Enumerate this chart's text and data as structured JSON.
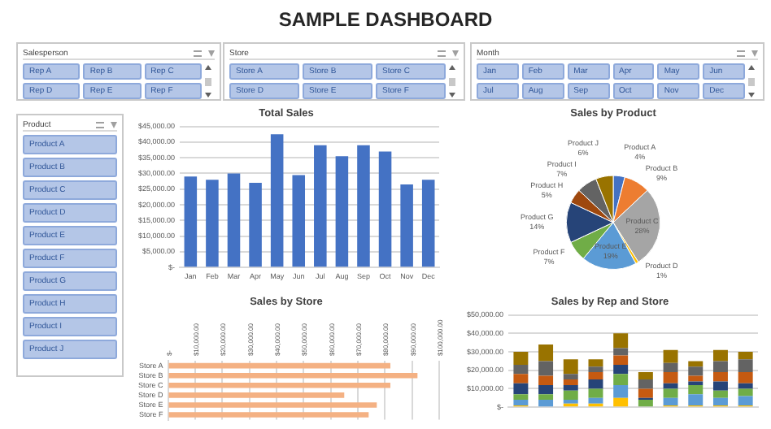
{
  "chart_data": [
    {
      "type": "other",
      "title": "SAMPLE DASHBOARD"
    },
    {
      "type": "other",
      "title": "Salesperson",
      "categories": [
        "Rep A",
        "Rep B",
        "Rep C",
        "Rep D",
        "Rep E",
        "Rep F"
      ]
    },
    {
      "type": "other",
      "title": "Store",
      "categories": [
        "Store A",
        "Store B",
        "Store C",
        "Store D",
        "Store E",
        "Store F"
      ]
    },
    {
      "type": "other",
      "title": "Month",
      "categories": [
        "Jan",
        "Feb",
        "Mar",
        "Apr",
        "May",
        "Jun",
        "Jul",
        "Aug",
        "Sep",
        "Oct",
        "Nov",
        "Dec"
      ]
    },
    {
      "type": "other",
      "title": "Product",
      "categories": [
        "Product A",
        "Product B",
        "Product C",
        "Product D",
        "Product E",
        "Product F",
        "Product G",
        "Product H",
        "Product I",
        "Product J"
      ]
    },
    {
      "type": "bar",
      "title": "Total Sales",
      "categories": [
        "Jan",
        "Feb",
        "Mar",
        "Apr",
        "May",
        "Jun",
        "Jul",
        "Aug",
        "Sep",
        "Oct",
        "Nov",
        "Dec"
      ],
      "values": [
        29000,
        28000,
        30000,
        27000,
        42500,
        29500,
        39000,
        35500,
        39000,
        37000,
        26500,
        28000
      ],
      "color": "#4472c4",
      "ylim": [
        0,
        45000
      ],
      "yticks": [
        {
          "value": 0,
          "label": "$-"
        },
        {
          "value": 5000,
          "label": "$5,000.00"
        },
        {
          "value": 10000,
          "label": "$10,000.00"
        },
        {
          "value": 15000,
          "label": "$15,000.00"
        },
        {
          "value": 20000,
          "label": "$20,000.00"
        },
        {
          "value": 25000,
          "label": "$25,000.00"
        },
        {
          "value": 30000,
          "label": "$30,000.00"
        },
        {
          "value": 35000,
          "label": "$35,000.00"
        },
        {
          "value": 40000,
          "label": "$40,000.00"
        },
        {
          "value": 45000,
          "label": "$45,000.00"
        }
      ],
      "grid": "y"
    },
    {
      "type": "pie",
      "title": "Sales by Product",
      "categories": [
        "Product A",
        "Product B",
        "Product C",
        "Product D",
        "Product E",
        "Product F",
        "Product G",
        "Product H",
        "Product I",
        "Product J"
      ],
      "values": [
        4,
        9,
        28,
        1,
        19,
        7,
        14,
        5,
        7,
        6
      ],
      "colors": [
        "#4472c4",
        "#ed7d31",
        "#a5a5a5",
        "#ffc000",
        "#5b9bd5",
        "#70ad47",
        "#264478",
        "#9e480e",
        "#636363",
        "#997300"
      ],
      "value_labels": [
        "4%",
        "9%",
        "28%",
        "1%",
        "19%",
        "7%",
        "14%",
        "5%",
        "7%",
        "6%"
      ]
    },
    {
      "type": "bar",
      "orientation": "horizontal",
      "title": "Sales by Store",
      "categories": [
        "Store A",
        "Store B",
        "Store C",
        "Store D",
        "Store E",
        "Store F"
      ],
      "values": [
        82000,
        92000,
        82000,
        65000,
        77000,
        74000
      ],
      "color": "#f4b183",
      "xlim": [
        0,
        100000
      ],
      "xticks": [
        {
          "value": 0,
          "label": "$-"
        },
        {
          "value": 10000,
          "label": "$10,000.00"
        },
        {
          "value": 20000,
          "label": "$20,000.00"
        },
        {
          "value": 30000,
          "label": "$30,000.00"
        },
        {
          "value": 40000,
          "label": "$40,000.00"
        },
        {
          "value": 50000,
          "label": "$50,000.00"
        },
        {
          "value": 60000,
          "label": "$60,000.00"
        },
        {
          "value": 70000,
          "label": "$70,000.00"
        },
        {
          "value": 80000,
          "label": "$80,000.00"
        },
        {
          "value": 90000,
          "label": "$90,000.00"
        },
        {
          "value": 100000,
          "label": "$100,000.00"
        }
      ],
      "grid": "x"
    },
    {
      "type": "bar",
      "stacked": true,
      "title": "Sales by Rep and Store",
      "categories": [
        null,
        null,
        null,
        null,
        null,
        null,
        null,
        null,
        null,
        null
      ],
      "ylim": [
        0,
        50000
      ],
      "yticks": [
        {
          "value": 0,
          "label": "$-"
        },
        {
          "value": 10000,
          "label": "$10,000.00"
        },
        {
          "value": 20000,
          "label": "$20,000.00"
        },
        {
          "value": 30000,
          "label": "$30,000.00"
        },
        {
          "value": 40000,
          "label": "$40,000.00"
        },
        {
          "value": 50000,
          "label": "$50,000.00"
        }
      ],
      "grid": "y",
      "series": [
        {
          "color": "#ffc000",
          "values": [
            1000,
            0,
            2000,
            2000,
            5000,
            0,
            1000,
            1000,
            1000,
            1000
          ]
        },
        {
          "color": "#5b9bd5",
          "values": [
            3000,
            4000,
            2000,
            3000,
            7000,
            0,
            4000,
            6000,
            4000,
            5000
          ]
        },
        {
          "color": "#70ad47",
          "values": [
            3000,
            3000,
            5000,
            5000,
            6000,
            4000,
            5000,
            5000,
            4000,
            4000
          ]
        },
        {
          "color": "#264478",
          "values": [
            6000,
            5000,
            3000,
            5000,
            5000,
            1000,
            3000,
            2000,
            5000,
            3000
          ]
        },
        {
          "color": "#c55a11",
          "values": [
            5000,
            5000,
            3000,
            4000,
            5000,
            5000,
            6000,
            3000,
            5000,
            6000
          ]
        },
        {
          "color": "#636363",
          "values": [
            5000,
            8000,
            3000,
            3000,
            4000,
            5000,
            5000,
            5000,
            6000,
            7000
          ]
        },
        {
          "color": "#997300",
          "values": [
            7000,
            9000,
            8000,
            4000,
            8000,
            4000,
            7000,
            3000,
            6000,
            4000
          ]
        }
      ]
    }
  ]
}
